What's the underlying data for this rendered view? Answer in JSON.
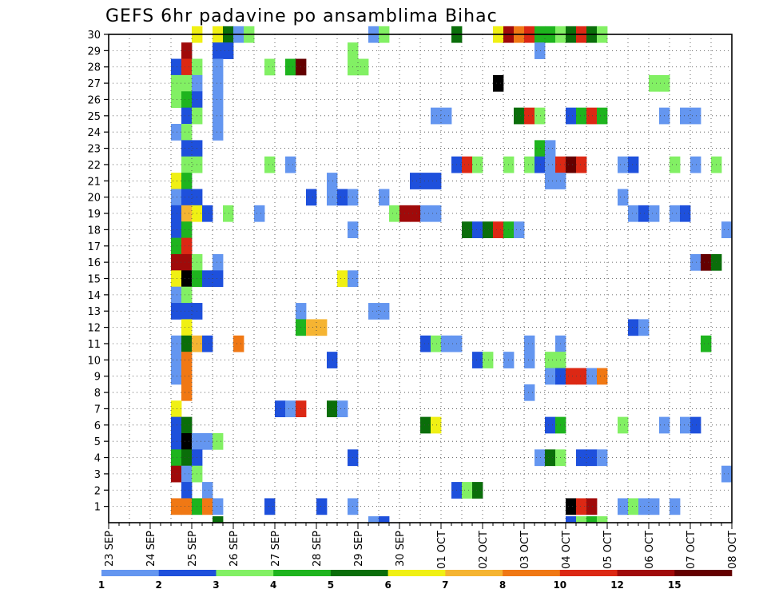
{
  "chart_data": {
    "type": "heatmap",
    "title": "GEFS 6hr padavine po ansamblima Bihac",
    "x_tick_labels": [
      "23 SEP",
      "24 SEP",
      "25 SEP",
      "26 SEP",
      "27 SEP",
      "28 SEP",
      "29 SEP",
      "30 SEP",
      "01 OCT",
      "02 OCT",
      "03 OCT",
      "04 OCT",
      "05 OCT",
      "06 OCT",
      "07 OCT",
      "08 OCT"
    ],
    "y_tick_labels": [
      "1",
      "2",
      "3",
      "4",
      "5",
      "6",
      "7",
      "8",
      "9",
      "10",
      "11",
      "12",
      "13",
      "14",
      "15",
      "16",
      "17",
      "18",
      "19",
      "20",
      "21",
      "22",
      "23",
      "24",
      "25",
      "26",
      "27",
      "28",
      "29",
      "30"
    ],
    "x_steps_per_day": 4,
    "ylim": [
      0,
      30
    ],
    "grid": true,
    "legend_position": "bottom",
    "colorbar": {
      "boundaries": [
        "1",
        "2",
        "3",
        "4",
        "5",
        "6",
        "7",
        "8",
        "10",
        "12",
        "15",
        "20"
      ],
      "colors": [
        "#b4c8f5",
        "#6496f0",
        "#1e50dc",
        "#82f064",
        "#1eb41e",
        "#0a6e0a",
        "#f0f014",
        "#f5b432",
        "#f07814",
        "#dc2814",
        "#a00a0a",
        "#640000"
      ]
    },
    "cells": [
      [
        30,
        8,
        6
      ],
      [
        30,
        10,
        6
      ],
      [
        30,
        11,
        5
      ],
      [
        30,
        12,
        1
      ],
      [
        30,
        13,
        3
      ],
      [
        30,
        25,
        1
      ],
      [
        30,
        26,
        3
      ],
      [
        30,
        33,
        5
      ],
      [
        30,
        37,
        6
      ],
      [
        30,
        38,
        10
      ],
      [
        30,
        39,
        8
      ],
      [
        30,
        40,
        9
      ],
      [
        30,
        41,
        4
      ],
      [
        30,
        42,
        4
      ],
      [
        30,
        43,
        3
      ],
      [
        30,
        44,
        5
      ],
      [
        30,
        45,
        9
      ],
      [
        30,
        46,
        5
      ],
      [
        30,
        47,
        3
      ],
      [
        29,
        7,
        10
      ],
      [
        29,
        10,
        2
      ],
      [
        29,
        11,
        2
      ],
      [
        29,
        23,
        3
      ],
      [
        29,
        41,
        1
      ],
      [
        28,
        6,
        2
      ],
      [
        28,
        7,
        9
      ],
      [
        28,
        8,
        3
      ],
      [
        28,
        10,
        1
      ],
      [
        28,
        15,
        3
      ],
      [
        28,
        17,
        4
      ],
      [
        28,
        18,
        11
      ],
      [
        28,
        23,
        3
      ],
      [
        28,
        24,
        3
      ],
      [
        27,
        6,
        3
      ],
      [
        27,
        7,
        3
      ],
      [
        27,
        8,
        1
      ],
      [
        27,
        10,
        1
      ],
      [
        27,
        37,
        12
      ],
      [
        27,
        52,
        3
      ],
      [
        27,
        53,
        3
      ],
      [
        26,
        6,
        3
      ],
      [
        26,
        7,
        4
      ],
      [
        26,
        8,
        2
      ],
      [
        26,
        10,
        1
      ],
      [
        25,
        7,
        2
      ],
      [
        25,
        8,
        3
      ],
      [
        25,
        10,
        1
      ],
      [
        25,
        31,
        1
      ],
      [
        25,
        32,
        1
      ],
      [
        25,
        39,
        5
      ],
      [
        25,
        40,
        9
      ],
      [
        25,
        41,
        3
      ],
      [
        25,
        44,
        2
      ],
      [
        25,
        45,
        4
      ],
      [
        25,
        46,
        9
      ],
      [
        25,
        47,
        4
      ],
      [
        25,
        53,
        1
      ],
      [
        25,
        55,
        1
      ],
      [
        25,
        56,
        1
      ],
      [
        24,
        6,
        1
      ],
      [
        24,
        7,
        3
      ],
      [
        24,
        10,
        1
      ],
      [
        23,
        7,
        2
      ],
      [
        23,
        8,
        2
      ],
      [
        23,
        41,
        4
      ],
      [
        23,
        42,
        1
      ],
      [
        22,
        7,
        3
      ],
      [
        22,
        8,
        3
      ],
      [
        22,
        15,
        3
      ],
      [
        22,
        17,
        1
      ],
      [
        22,
        33,
        2
      ],
      [
        22,
        34,
        9
      ],
      [
        22,
        35,
        3
      ],
      [
        22,
        38,
        3
      ],
      [
        22,
        40,
        3
      ],
      [
        22,
        41,
        2
      ],
      [
        22,
        42,
        1
      ],
      [
        22,
        43,
        9
      ],
      [
        22,
        44,
        11
      ],
      [
        22,
        45,
        9
      ],
      [
        22,
        49,
        1
      ],
      [
        22,
        50,
        2
      ],
      [
        22,
        54,
        3
      ],
      [
        22,
        56,
        1
      ],
      [
        22,
        58,
        3
      ],
      [
        21,
        6,
        6
      ],
      [
        21,
        7,
        4
      ],
      [
        21,
        21,
        1
      ],
      [
        21,
        29,
        2
      ],
      [
        21,
        30,
        2
      ],
      [
        21,
        31,
        2
      ],
      [
        21,
        42,
        1
      ],
      [
        21,
        43,
        1
      ],
      [
        20,
        6,
        1
      ],
      [
        20,
        7,
        2
      ],
      [
        20,
        8,
        2
      ],
      [
        20,
        19,
        2
      ],
      [
        20,
        21,
        1
      ],
      [
        20,
        22,
        2
      ],
      [
        20,
        23,
        1
      ],
      [
        20,
        26,
        1
      ],
      [
        20,
        49,
        1
      ],
      [
        19,
        6,
        2
      ],
      [
        19,
        7,
        7
      ],
      [
        19,
        8,
        6
      ],
      [
        19,
        9,
        2
      ],
      [
        19,
        11,
        3
      ],
      [
        19,
        14,
        1
      ],
      [
        19,
        27,
        3
      ],
      [
        19,
        28,
        10
      ],
      [
        19,
        29,
        10
      ],
      [
        19,
        30,
        1
      ],
      [
        19,
        31,
        1
      ],
      [
        19,
        50,
        1
      ],
      [
        19,
        51,
        2
      ],
      [
        19,
        52,
        1
      ],
      [
        19,
        54,
        1
      ],
      [
        19,
        55,
        2
      ],
      [
        18,
        6,
        2
      ],
      [
        18,
        7,
        4
      ],
      [
        18,
        23,
        1
      ],
      [
        18,
        34,
        5
      ],
      [
        18,
        35,
        2
      ],
      [
        18,
        36,
        5
      ],
      [
        18,
        37,
        9
      ],
      [
        18,
        38,
        4
      ],
      [
        18,
        39,
        1
      ],
      [
        18,
        59,
        1
      ],
      [
        17,
        6,
        4
      ],
      [
        17,
        7,
        9
      ],
      [
        16,
        6,
        10
      ],
      [
        16,
        7,
        10
      ],
      [
        16,
        8,
        3
      ],
      [
        16,
        10,
        1
      ],
      [
        16,
        56,
        1
      ],
      [
        16,
        57,
        11
      ],
      [
        16,
        58,
        5
      ],
      [
        15,
        6,
        6
      ],
      [
        15,
        7,
        12
      ],
      [
        15,
        8,
        4
      ],
      [
        15,
        9,
        2
      ],
      [
        15,
        10,
        2
      ],
      [
        15,
        22,
        6
      ],
      [
        15,
        23,
        1
      ],
      [
        14,
        6,
        1
      ],
      [
        14,
        7,
        3
      ],
      [
        13,
        6,
        2
      ],
      [
        13,
        7,
        2
      ],
      [
        13,
        8,
        2
      ],
      [
        13,
        18,
        1
      ],
      [
        13,
        25,
        1
      ],
      [
        13,
        26,
        1
      ],
      [
        12,
        7,
        6
      ],
      [
        12,
        18,
        4
      ],
      [
        12,
        19,
        7
      ],
      [
        12,
        20,
        7
      ],
      [
        12,
        50,
        2
      ],
      [
        12,
        51,
        1
      ],
      [
        11,
        6,
        1
      ],
      [
        11,
        7,
        5
      ],
      [
        11,
        8,
        7
      ],
      [
        11,
        9,
        2
      ],
      [
        11,
        12,
        8
      ],
      [
        11,
        30,
        2
      ],
      [
        11,
        31,
        3
      ],
      [
        11,
        32,
        1
      ],
      [
        11,
        33,
        1
      ],
      [
        11,
        40,
        1
      ],
      [
        11,
        43,
        1
      ],
      [
        11,
        57,
        4
      ],
      [
        10,
        6,
        1
      ],
      [
        10,
        7,
        8
      ],
      [
        10,
        21,
        2
      ],
      [
        10,
        35,
        2
      ],
      [
        10,
        36,
        3
      ],
      [
        10,
        38,
        1
      ],
      [
        10,
        40,
        1
      ],
      [
        10,
        42,
        3
      ],
      [
        10,
        43,
        3
      ],
      [
        9,
        6,
        1
      ],
      [
        9,
        7,
        8
      ],
      [
        9,
        42,
        1
      ],
      [
        9,
        43,
        2
      ],
      [
        9,
        44,
        9
      ],
      [
        9,
        45,
        9
      ],
      [
        9,
        46,
        1
      ],
      [
        9,
        47,
        8
      ],
      [
        8,
        7,
        8
      ],
      [
        8,
        40,
        1
      ],
      [
        7,
        6,
        6
      ],
      [
        7,
        16,
        2
      ],
      [
        7,
        17,
        1
      ],
      [
        7,
        18,
        9
      ],
      [
        7,
        21,
        5
      ],
      [
        7,
        22,
        1
      ],
      [
        6,
        6,
        2
      ],
      [
        6,
        7,
        5
      ],
      [
        6,
        30,
        5
      ],
      [
        6,
        31,
        6
      ],
      [
        6,
        42,
        2
      ],
      [
        6,
        43,
        4
      ],
      [
        6,
        49,
        3
      ],
      [
        6,
        53,
        1
      ],
      [
        6,
        55,
        1
      ],
      [
        6,
        56,
        2
      ],
      [
        5,
        6,
        2
      ],
      [
        5,
        7,
        12
      ],
      [
        5,
        8,
        1
      ],
      [
        5,
        9,
        1
      ],
      [
        5,
        10,
        3
      ],
      [
        4,
        6,
        4
      ],
      [
        4,
        7,
        5
      ],
      [
        4,
        8,
        2
      ],
      [
        4,
        23,
        2
      ],
      [
        4,
        41,
        1
      ],
      [
        4,
        42,
        5
      ],
      [
        4,
        43,
        3
      ],
      [
        4,
        45,
        2
      ],
      [
        4,
        46,
        2
      ],
      [
        4,
        47,
        1
      ],
      [
        3,
        6,
        10
      ],
      [
        3,
        7,
        1
      ],
      [
        3,
        8,
        3
      ],
      [
        3,
        59,
        1
      ],
      [
        2,
        7,
        2
      ],
      [
        2,
        9,
        1
      ],
      [
        2,
        33,
        2
      ],
      [
        2,
        34,
        3
      ],
      [
        2,
        35,
        5
      ],
      [
        1,
        6,
        8
      ],
      [
        1,
        7,
        8
      ],
      [
        1,
        8,
        4
      ],
      [
        1,
        9,
        8
      ],
      [
        1,
        10,
        1
      ],
      [
        1,
        15,
        2
      ],
      [
        1,
        20,
        2
      ],
      [
        1,
        23,
        1
      ],
      [
        1,
        44,
        12
      ],
      [
        1,
        45,
        9
      ],
      [
        1,
        46,
        10
      ],
      [
        1,
        49,
        1
      ],
      [
        1,
        50,
        3
      ],
      [
        1,
        51,
        1
      ],
      [
        1,
        52,
        1
      ],
      [
        1,
        54,
        1
      ],
      [
        0,
        10,
        5
      ],
      [
        0,
        25,
        1
      ],
      [
        0,
        26,
        2
      ],
      [
        0,
        44,
        2
      ],
      [
        0,
        45,
        3
      ],
      [
        0,
        46,
        4
      ],
      [
        0,
        47,
        3
      ]
    ]
  }
}
